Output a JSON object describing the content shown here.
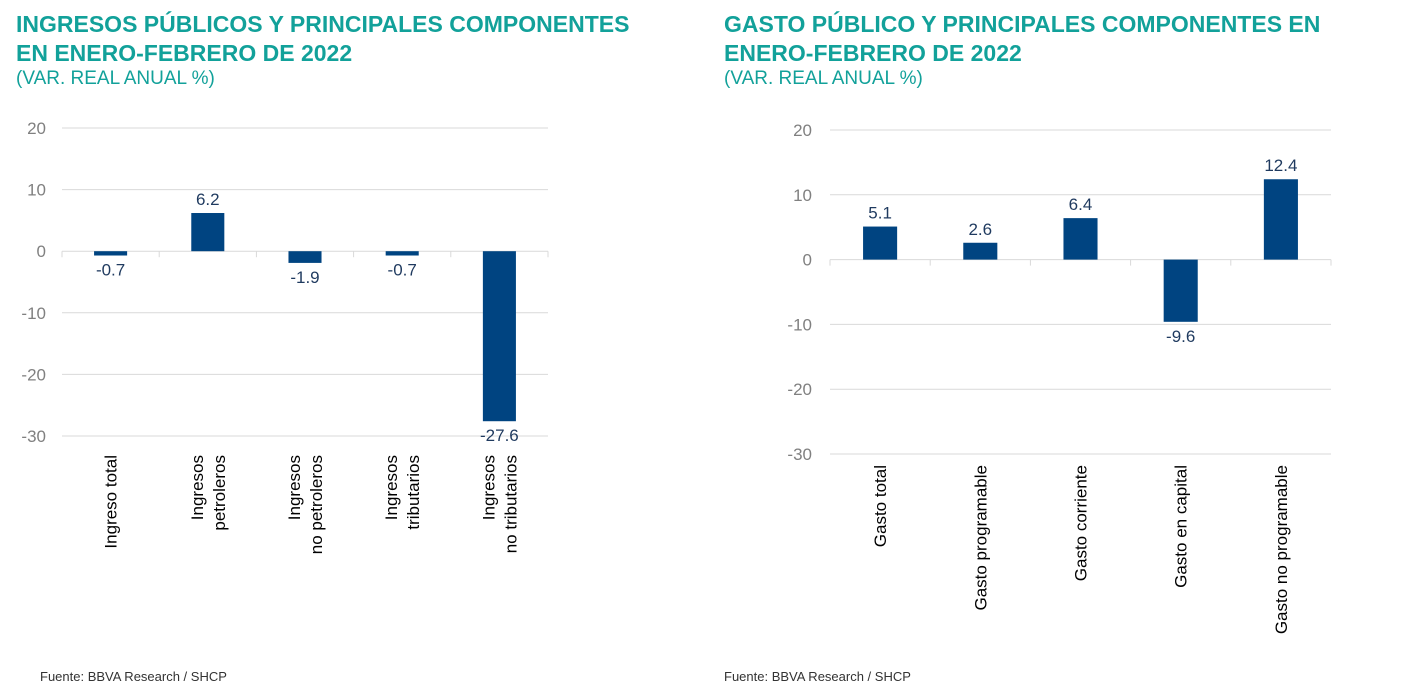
{
  "chart_data": [
    {
      "type": "bar",
      "title": "INGRESOS PÚBLICOS Y PRINCIPALES COMPONENTES EN ENERO-FEBRERO DE 2022",
      "subtitle": "(VAR. REAL ANUAL %)",
      "categories": [
        [
          "Ingreso total"
        ],
        [
          "Ingresos",
          "petroleros"
        ],
        [
          "Ingresos",
          "no petroleros"
        ],
        [
          "Ingresos",
          "tributarios"
        ],
        [
          "Ingresos",
          "no tributarios"
        ]
      ],
      "values": [
        -0.7,
        6.2,
        -1.9,
        -0.7,
        -27.6
      ],
      "value_labels": [
        "-0.7",
        "6.2",
        "-1.9",
        "-0.7",
        "-27.6"
      ],
      "ylim": [
        -30,
        20
      ],
      "yticks": [
        20,
        10,
        0,
        -10,
        -20,
        -30
      ],
      "grid": true,
      "bar_color": "#004481",
      "source": "Fuente: BBVA Research / SHCP"
    },
    {
      "type": "bar",
      "title": "GASTO PÚBLICO Y PRINCIPALES COMPONENTES EN ENERO-FEBRERO DE 2022",
      "subtitle": "(VAR. REAL ANUAL %)",
      "categories": [
        [
          "Gasto total"
        ],
        [
          "Gasto programable"
        ],
        [
          "Gasto corriente"
        ],
        [
          "Gasto en capital"
        ],
        [
          "Gasto no programable"
        ]
      ],
      "values": [
        5.1,
        2.6,
        6.4,
        -9.6,
        12.4
      ],
      "value_labels": [
        "5.1",
        "2.6",
        "6.4",
        "-9.6",
        "12.4"
      ],
      "ylim": [
        -30,
        20
      ],
      "yticks": [
        20,
        10,
        0,
        -10,
        -20,
        -30
      ],
      "grid": true,
      "bar_color": "#004481",
      "source": "Fuente: BBVA Research / SHCP"
    }
  ],
  "colors": {
    "title": "#12A19A",
    "bar": "#004481",
    "grid": "#d9d9d9",
    "tick": "#808080"
  }
}
